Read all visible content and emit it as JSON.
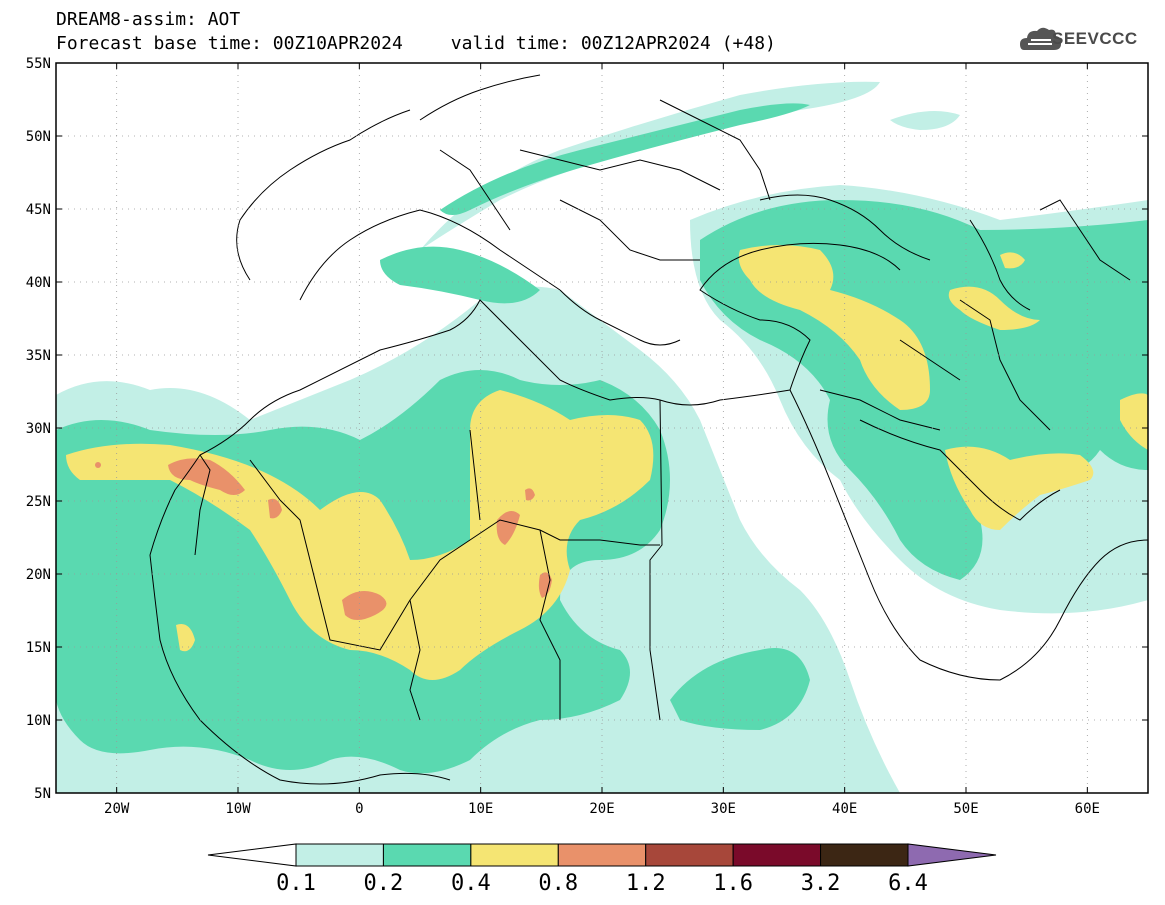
{
  "header": {
    "title": "DREAM8-assim: AOT",
    "base_time": "Forecast base time: 00Z10APR2024",
    "valid_time": "valid time: 00Z12APR2024 (+48)"
  },
  "logo": {
    "text": "SEEVCCC",
    "icon": "cloud-logo-icon"
  },
  "map": {
    "lon_range": [
      -25,
      65
    ],
    "lat_range": [
      5,
      55
    ],
    "lat_labels": [
      "55N",
      "50N",
      "45N",
      "40N",
      "35N",
      "30N",
      "25N",
      "20N",
      "15N",
      "10N",
      "5N"
    ],
    "lon_labels": [
      "20W",
      "10W",
      "0",
      "10E",
      "20E",
      "30E",
      "40E",
      "50E",
      "60E"
    ],
    "grid": true
  },
  "colorbar": {
    "labels": [
      "0.1",
      "0.2",
      "0.4",
      "0.8",
      "1.2",
      "1.6",
      "3.2",
      "6.4"
    ],
    "colors": [
      "#c2efe6",
      "#5ad9b0",
      "#f5e573",
      "#e9916a",
      "#a7473a",
      "#7a0a2a",
      "#3c2614",
      "#8e6ab0"
    ]
  }
}
